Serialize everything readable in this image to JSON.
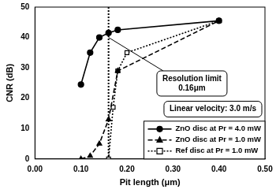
{
  "chart_data": {
    "type": "line",
    "x_label": "Pit length (μm)",
    "y_label": "CNR (dB)",
    "xlim": [
      0,
      0.5
    ],
    "xticks": [
      {
        "value": 0,
        "label": "0.00"
      },
      {
        "value": 0.1,
        "label": "0.10"
      },
      {
        "value": 0.2,
        "label": "0.20"
      },
      {
        "value": 0.3,
        "label": "0.30"
      },
      {
        "value": 0.4,
        "label": "0.40"
      },
      {
        "value": 0.5,
        "label": "0.50"
      }
    ],
    "ylim": [
      0,
      50
    ],
    "yticks": [
      0,
      10,
      20,
      30,
      40,
      50
    ],
    "grid": false,
    "legend": "lower right",
    "vline": 0.16,
    "annotations": [
      {
        "text": [
          "Resolution limit",
          "0.16μm"
        ]
      },
      {
        "text": [
          "Linear velocity: 3.0 m/s"
        ]
      }
    ],
    "series": [
      {
        "name": "ZnO disc at Pr = 4.0 mW",
        "color": "#000000",
        "marker": "circle",
        "line_style": "solid",
        "x": [
          0.1,
          0.12,
          0.14,
          0.16,
          0.18,
          0.4
        ],
        "values": [
          24.5,
          35,
          40,
          41.5,
          42.5,
          45.5
        ]
      },
      {
        "name": "ZnO disc at Pr = 1.0 mW",
        "color": "#000000",
        "marker": "triangle",
        "line_style": "dashed",
        "x": [
          0.1,
          0.12,
          0.14,
          0.16,
          0.18,
          0.4
        ],
        "values": [
          0,
          1,
          5,
          13,
          29,
          45.5
        ]
      },
      {
        "name": "Ref disc at Pr = 1.0 mW",
        "color": "#000000",
        "marker": "square_open",
        "line_style": "dotted",
        "x": [
          0.16,
          0.17,
          0.18,
          0.2,
          0.4
        ],
        "values": [
          0,
          17,
          29,
          35,
          45.5
        ]
      }
    ]
  }
}
